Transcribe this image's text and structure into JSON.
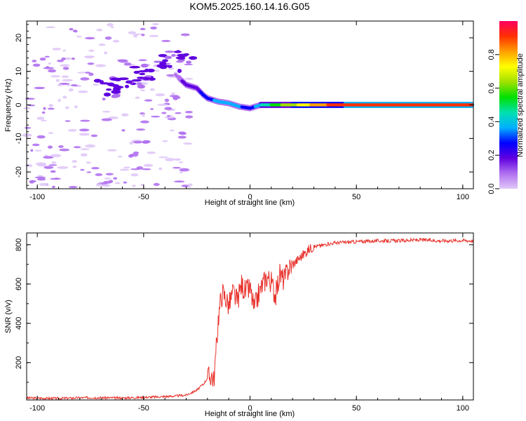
{
  "figure": {
    "title": "KOM5.2025.160.14.16.G05"
  },
  "chart_data": [
    {
      "type": "heatmap",
      "xlabel": "Height of straight line (km)",
      "ylabel": "Frequency (Hz)",
      "xlim": [
        -105,
        105
      ],
      "ylim": [
        -25,
        25
      ],
      "xticks": [
        -100,
        -50,
        0,
        50,
        100
      ],
      "yticks": [
        -20,
        -10,
        0,
        10,
        20
      ],
      "colorbar": {
        "label": "Normalized spectral amplitude",
        "range": [
          0,
          1
        ],
        "ticks": [
          0.0,
          0.2,
          0.4,
          0.6,
          0.8
        ],
        "colors": [
          "#e0c8f8",
          "#b070f0",
          "#6000e0",
          "#0000ff",
          "#00b0ff",
          "#00e0b0",
          "#00e000",
          "#a0e000",
          "#ffff00",
          "#ffa000",
          "#ff3000",
          "#ff0060"
        ]
      },
      "ridge": [
        {
          "x": -35,
          "y": 9,
          "v": 0.12
        },
        {
          "x": -30,
          "y": 6,
          "v": 0.15
        },
        {
          "x": -25,
          "y": 5,
          "v": 0.2
        },
        {
          "x": -22,
          "y": 3,
          "v": 0.25
        },
        {
          "x": -20,
          "y": 2,
          "v": 0.3
        },
        {
          "x": -15,
          "y": 1,
          "v": 0.33
        },
        {
          "x": -10,
          "y": 0.5,
          "v": 0.35
        },
        {
          "x": -5,
          "y": -0.5,
          "v": 0.33
        },
        {
          "x": 0,
          "y": -1,
          "v": 0.25
        },
        {
          "x": 5,
          "y": 0,
          "v": 0.4
        },
        {
          "x": 10,
          "y": 0,
          "v": 0.5
        },
        {
          "x": 15,
          "y": 0,
          "v": 0.6
        },
        {
          "x": 20,
          "y": 0,
          "v": 0.65
        },
        {
          "x": 30,
          "y": 0,
          "v": 0.8
        },
        {
          "x": 40,
          "y": 0,
          "v": 0.9
        },
        {
          "x": 50,
          "y": 0,
          "v": 0.92
        },
        {
          "x": 60,
          "y": 0,
          "v": 0.95
        },
        {
          "x": 70,
          "y": 0,
          "v": 0.95
        },
        {
          "x": 80,
          "y": 0,
          "v": 0.95
        },
        {
          "x": 90,
          "y": 0,
          "v": 0.95
        },
        {
          "x": 100,
          "y": 0,
          "v": 0.95
        },
        {
          "x": 105,
          "y": 0,
          "v": 0.95
        }
      ],
      "noise_x_range": [
        -105,
        -28
      ]
    },
    {
      "type": "line",
      "xlabel": "Height of straight line (km)",
      "ylabel": "SNR (v/v)",
      "xlim": [
        -105,
        105
      ],
      "ylim": [
        10,
        860
      ],
      "xticks": [
        -100,
        -50,
        0,
        50,
        100
      ],
      "yticks": [
        200,
        400,
        600,
        800
      ],
      "color": "#e8302a",
      "x": [
        -105,
        -90,
        -75,
        -60,
        -45,
        -35,
        -30,
        -25,
        -22,
        -20,
        -18,
        -17,
        -16,
        -15,
        -14,
        -13,
        -12,
        -11,
        -10,
        -8,
        -6,
        -4,
        -2,
        0,
        2,
        4,
        6,
        8,
        10,
        12,
        14,
        16,
        18,
        20,
        22,
        24,
        26,
        28,
        30,
        35,
        40,
        50,
        60,
        70,
        80,
        90,
        100,
        105
      ],
      "y": [
        20,
        18,
        22,
        20,
        25,
        30,
        35,
        60,
        90,
        120,
        140,
        110,
        250,
        420,
        500,
        560,
        540,
        520,
        490,
        560,
        510,
        600,
        560,
        580,
        470,
        550,
        600,
        640,
        610,
        540,
        650,
        620,
        680,
        700,
        720,
        740,
        760,
        780,
        790,
        800,
        810,
        815,
        820,
        820,
        825,
        820,
        822,
        820
      ]
    }
  ]
}
